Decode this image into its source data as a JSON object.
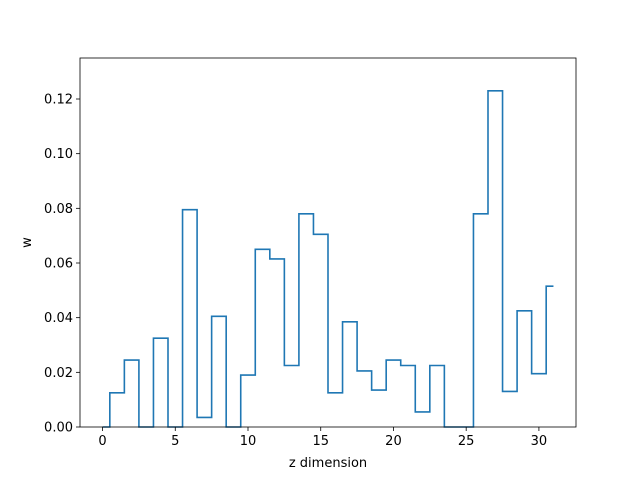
{
  "chart_data": {
    "type": "line",
    "drawstyle": "steps-mid",
    "title": "",
    "xlabel": "z dimension",
    "ylabel": "w",
    "xlim": [
      -1.55,
      32.55
    ],
    "ylim": [
      0.0,
      0.135
    ],
    "grid": false,
    "x": [
      0,
      1,
      2,
      3,
      4,
      5,
      6,
      7,
      8,
      9,
      10,
      11,
      12,
      13,
      14,
      15,
      16,
      17,
      18,
      19,
      20,
      21,
      22,
      23,
      24,
      25,
      26,
      27,
      28,
      29,
      30,
      31
    ],
    "series": [
      {
        "color": "#1f77b4",
        "values": [
          0.0,
          0.0125,
          0.0245,
          0.0,
          0.0325,
          0.0,
          0.0795,
          0.0035,
          0.0405,
          0.0,
          0.019,
          0.065,
          0.0615,
          0.0225,
          0.078,
          0.0705,
          0.0125,
          0.0385,
          0.0205,
          0.0135,
          0.0245,
          0.0225,
          0.0055,
          0.0225,
          0.0,
          0.0,
          0.078,
          0.123,
          0.013,
          0.0425,
          0.0195,
          0.0515
        ]
      }
    ],
    "xticks": [
      0,
      5,
      10,
      15,
      20,
      25,
      30
    ],
    "xtick_labels": [
      "0",
      "5",
      "10",
      "15",
      "20",
      "25",
      "30"
    ],
    "yticks": [
      0.0,
      0.02,
      0.04,
      0.06,
      0.08,
      0.1,
      0.12
    ],
    "ytick_labels": [
      "0.00",
      "0.02",
      "0.04",
      "0.06",
      "0.08",
      "0.10",
      "0.12"
    ]
  }
}
